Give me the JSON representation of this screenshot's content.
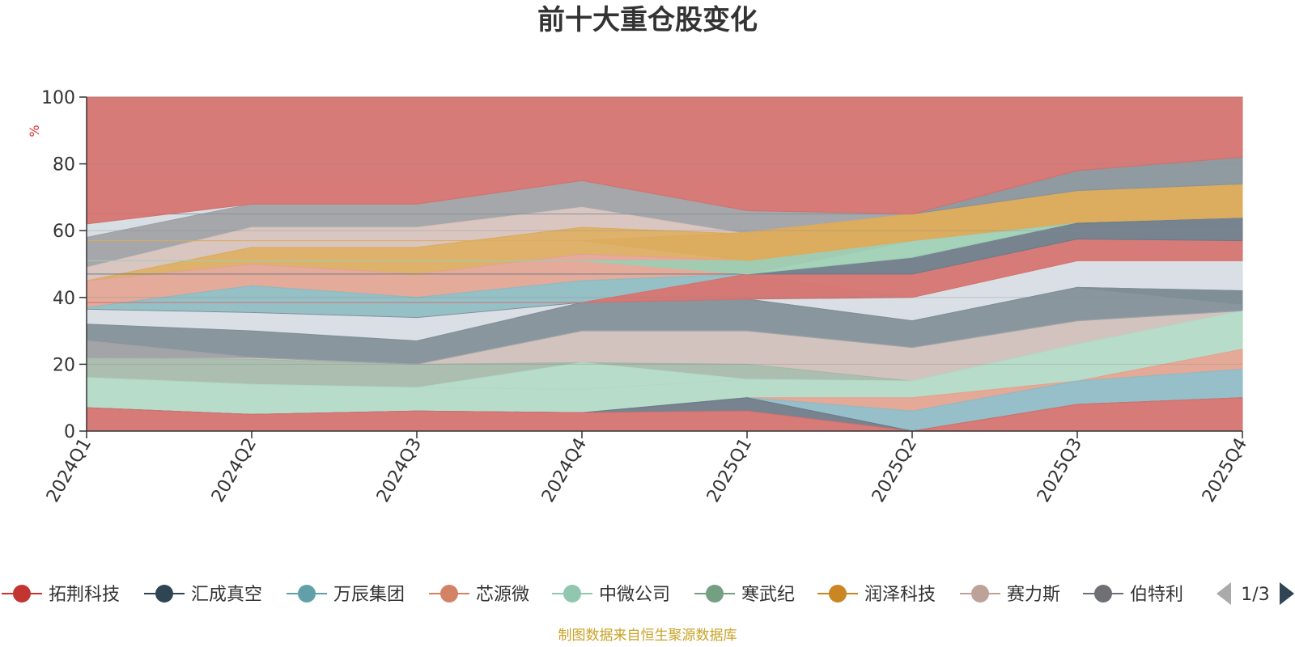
{
  "chart_data": {
    "type": "area",
    "title": "前十大重仓股变化",
    "ylabel": "%",
    "ylim": [
      0,
      100
    ],
    "yticks": [
      "0",
      "20",
      "40",
      "60",
      "80",
      "100"
    ],
    "categories": [
      "2024Q1",
      "2024Q2",
      "2024Q3",
      "2024Q4",
      "2025Q1",
      "2025Q2",
      "2025Q3",
      "2025Q4"
    ],
    "grid": true,
    "bands": [
      {
        "color": "#d4dbe2",
        "values": [
          [
            58,
            62
          ],
          [
            68,
            68
          ],
          [
            68,
            68
          ],
          [
            75,
            75
          ],
          [
            66,
            66
          ],
          [
            65,
            65
          ],
          [
            78,
            78
          ],
          [
            82,
            82
          ]
        ]
      },
      {
        "color": "#9da0a4",
        "values": [
          [
            49,
            58
          ],
          [
            61,
            68
          ],
          [
            61,
            68
          ],
          [
            67,
            75
          ],
          [
            59,
            66
          ],
          [
            65,
            65
          ],
          [
            78,
            78
          ],
          [
            82,
            82
          ]
        ]
      },
      {
        "color": "#d6c1bb",
        "values": [
          [
            45,
            49
          ],
          [
            55,
            61
          ],
          [
            55,
            61
          ],
          [
            61,
            67
          ],
          [
            59,
            59
          ],
          [
            65,
            65
          ],
          [
            78,
            78
          ],
          [
            82,
            82
          ]
        ]
      },
      {
        "color": "#dbab5e",
        "values": [
          [
            45,
            45
          ],
          [
            50,
            55
          ],
          [
            47,
            55
          ],
          [
            53,
            61
          ],
          [
            51,
            59
          ],
          [
            57,
            65
          ],
          [
            62,
            72
          ],
          [
            64,
            74
          ]
        ]
      },
      {
        "color": "#e2a391",
        "values": [
          [
            37,
            45
          ],
          [
            43.5,
            50
          ],
          [
            40,
            47
          ],
          [
            45,
            53
          ],
          [
            47,
            51
          ],
          [
            57,
            57
          ],
          [
            62,
            62
          ],
          [
            64,
            64
          ]
        ]
      },
      {
        "color": "#8bbbc1",
        "values": [
          [
            36.5,
            37
          ],
          [
            35.5,
            43.5
          ],
          [
            34,
            40
          ],
          [
            38.5,
            45
          ],
          [
            47,
            47
          ],
          [
            57,
            57
          ],
          [
            62,
            62
          ],
          [
            64,
            64
          ]
        ]
      },
      {
        "color": "#d6dce3",
        "values": [
          [
            32,
            36.5
          ],
          [
            30,
            35.5
          ],
          [
            27,
            34
          ],
          [
            38.5,
            38.5
          ],
          [
            39.5,
            47
          ],
          [
            33,
            40
          ],
          [
            43,
            51
          ],
          [
            42,
            51
          ]
        ]
      },
      {
        "color": "#7f8d96",
        "values": [
          [
            27,
            32
          ],
          [
            22,
            30
          ],
          [
            20,
            27
          ],
          [
            30,
            38.5
          ],
          [
            30,
            39.5
          ],
          [
            25,
            33
          ],
          [
            33,
            43
          ],
          [
            36,
            42
          ]
        ]
      },
      {
        "color": "#cfbeba",
        "values": [
          [
            22,
            27
          ],
          [
            21.5,
            22
          ],
          [
            20,
            20
          ],
          [
            20,
            30
          ],
          [
            20,
            30
          ],
          [
            15,
            25
          ],
          [
            26,
            33
          ],
          [
            36,
            36
          ]
        ]
      },
      {
        "color": "#a4b8a8",
        "values": [
          [
            16,
            22
          ],
          [
            14,
            21.5
          ],
          [
            13,
            20
          ],
          [
            20.5,
            20.5
          ],
          [
            15.5,
            20
          ],
          [
            15,
            15
          ],
          [
            26,
            26
          ],
          [
            36,
            36
          ]
        ]
      },
      {
        "color": "#b2d9c6",
        "values": [
          [
            16,
            16
          ],
          [
            14,
            14
          ],
          [
            13,
            13
          ],
          [
            12.5,
            20.5
          ],
          [
            15.5,
            15.5
          ],
          [
            15,
            15
          ],
          [
            26,
            26
          ],
          [
            36,
            36
          ]
        ]
      },
      {
        "color": "#b2d9c6",
        "values": [
          [
            7,
            16
          ],
          [
            5,
            14
          ],
          [
            6,
            13
          ],
          [
            5.5,
            12.5
          ],
          [
            10,
            15.5
          ],
          [
            10,
            15
          ],
          [
            15,
            26
          ],
          [
            24.5,
            36
          ]
        ]
      },
      {
        "color": "#e3a28e",
        "values": [
          [
            7,
            7
          ],
          [
            5,
            5
          ],
          [
            6,
            6
          ],
          [
            5.5,
            5.5
          ],
          [
            10,
            10
          ],
          [
            6,
            10
          ],
          [
            15,
            15
          ],
          [
            18.5,
            24.5
          ]
        ]
      },
      {
        "color": "#8dbac4",
        "values": [
          [
            7,
            7
          ],
          [
            5,
            5
          ],
          [
            6,
            6
          ],
          [
            5.5,
            5.5
          ],
          [
            10,
            10
          ],
          [
            0,
            6
          ],
          [
            8,
            15
          ],
          [
            10,
            18.5
          ]
        ]
      },
      {
        "color": "#6b7a87",
        "values": [
          [
            7,
            7
          ],
          [
            5,
            5
          ],
          [
            6,
            6
          ],
          [
            5.5,
            5.5
          ],
          [
            6,
            10
          ],
          [
            0,
            0
          ],
          [
            8,
            8
          ],
          [
            10,
            10
          ]
        ]
      },
      {
        "color": "#d4706c",
        "values": [
          [
            0,
            7
          ],
          [
            0,
            5
          ],
          [
            0,
            6
          ],
          [
            0,
            5.5
          ],
          [
            0,
            6
          ],
          [
            0,
            0
          ],
          [
            0,
            8
          ],
          [
            0,
            10
          ]
        ]
      },
      {
        "color": "#9da2a6",
        "values": [
          [
            22,
            27
          ],
          [
            22,
            22
          ],
          [
            20,
            20
          ],
          [
            30,
            30
          ],
          [
            30,
            30
          ],
          [
            25,
            25
          ],
          [
            33,
            33
          ],
          [
            36,
            36
          ]
        ]
      },
      {
        "color": "#7f8d96",
        "values": [
          [
            36.5,
            36.5
          ],
          [
            35.5,
            35.5
          ],
          [
            34,
            34
          ],
          [
            38.5,
            38.5
          ],
          [
            39.5,
            39.5
          ],
          [
            33,
            33
          ],
          [
            43,
            43
          ],
          [
            38,
            42
          ]
        ]
      },
      {
        "color": "#d4706c",
        "values": [
          [
            38.5,
            38.5
          ],
          [
            38.5,
            38.5
          ],
          [
            38.5,
            38.5
          ],
          [
            38.5,
            38.5
          ],
          [
            39.5,
            47
          ],
          [
            40,
            47
          ],
          [
            51,
            57.5
          ],
          [
            51,
            57
          ]
        ]
      },
      {
        "color": "#6b7a87",
        "values": [
          [
            47,
            47
          ],
          [
            47,
            47
          ],
          [
            47,
            47
          ],
          [
            47,
            47
          ],
          [
            47,
            47
          ],
          [
            47,
            52
          ],
          [
            57.5,
            62.5
          ],
          [
            57,
            64
          ]
        ]
      },
      {
        "color": "#9ccfb4",
        "values": [
          [
            51,
            51
          ],
          [
            51,
            51
          ],
          [
            51,
            51
          ],
          [
            51,
            51
          ],
          [
            47,
            51
          ],
          [
            52,
            57
          ],
          [
            62.5,
            62.5
          ],
          [
            64,
            64
          ]
        ]
      },
      {
        "color": "#dbab5e",
        "values": [
          [
            57,
            57
          ],
          [
            57,
            57
          ],
          [
            57,
            57
          ],
          [
            57,
            57
          ],
          [
            51,
            59.5
          ],
          [
            57,
            65
          ],
          [
            62.5,
            72
          ],
          [
            64,
            74
          ]
        ]
      },
      {
        "color": "#879399",
        "values": [
          [
            65,
            65
          ],
          [
            65,
            65
          ],
          [
            65,
            65
          ],
          [
            65,
            65
          ],
          [
            65,
            65
          ],
          [
            65,
            65
          ],
          [
            72,
            78
          ],
          [
            74,
            82
          ]
        ]
      },
      {
        "color": "#d4706c",
        "values": [
          [
            62,
            100
          ],
          [
            68,
            100
          ],
          [
            68,
            100
          ],
          [
            75,
            100
          ],
          [
            66,
            100
          ],
          [
            65,
            100
          ],
          [
            78,
            100
          ],
          [
            82,
            100
          ]
        ]
      }
    ],
    "legend": {
      "placement": "bottom",
      "page": "1/3",
      "items": [
        {
          "name": "拓荆科技",
          "color": "#c23531"
        },
        {
          "name": "汇成真空",
          "color": "#2f4554"
        },
        {
          "name": "万辰集团",
          "color": "#61a0a8"
        },
        {
          "name": "芯源微",
          "color": "#d48265"
        },
        {
          "name": "中微公司",
          "color": "#91c7ae"
        },
        {
          "name": "寒武纪",
          "color": "#749f83"
        },
        {
          "name": "润泽科技",
          "color": "#ca8622"
        },
        {
          "name": "赛力斯",
          "color": "#bda29a"
        },
        {
          "name": "伯特利",
          "color": "#6e7074"
        }
      ]
    }
  },
  "footer": {
    "source": "制图数据来自恒生聚源数据库"
  }
}
